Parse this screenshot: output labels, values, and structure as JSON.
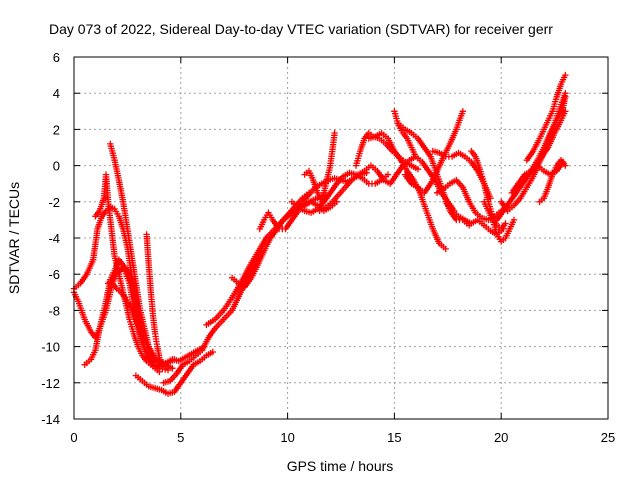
{
  "chart_data": {
    "type": "scatter",
    "title": "Day 073 of 2022, Sidereal Day-to-day VTEC variation (SDTVAR) for receiver gerr",
    "xlabel": "GPS time / hours",
    "ylabel": "SDTVAR / TECUs",
    "xlim": [
      0,
      25
    ],
    "ylim": [
      -14,
      6
    ],
    "xticks": [
      0,
      5,
      10,
      15,
      20,
      25
    ],
    "yticks": [
      -14,
      -12,
      -10,
      -8,
      -6,
      -4,
      -2,
      0,
      2,
      4,
      6
    ],
    "grid": true,
    "marker": "+",
    "color": "#ff0000",
    "series": [
      {
        "x": [
          0.0,
          0.2,
          0.5,
          0.8,
          1.0,
          1.2,
          1.5,
          1.8,
          2.0,
          2.3,
          2.6,
          2.9,
          3.2,
          3.5,
          3.8,
          4.0,
          4.3,
          4.6,
          4.9,
          5.2,
          5.5,
          5.8,
          6.1
        ],
        "y": [
          -7.0,
          -7.5,
          -8.5,
          -9.2,
          -9.5,
          -9.0,
          -8.0,
          -6.5,
          -6.0,
          -5.6,
          -6.5,
          -8.5,
          -9.8,
          -10.6,
          -11.0,
          -11.1,
          -10.9,
          -10.7,
          -10.8,
          -10.6,
          -10.4,
          -10.2,
          -10.0
        ]
      },
      {
        "x": [
          0.5,
          0.8,
          1.0,
          1.2,
          1.5,
          1.7,
          1.9,
          2.1,
          2.3,
          2.5,
          2.7,
          2.9,
          3.1,
          3.3,
          3.5,
          3.7,
          4.0,
          4.3,
          4.6
        ],
        "y": [
          -11.0,
          -10.7,
          -10.2,
          -9.0,
          -7.5,
          -6.3,
          -5.8,
          -5.2,
          -5.5,
          -5.8,
          -6.3,
          -7.3,
          -8.5,
          -9.5,
          -10.3,
          -10.7,
          -10.9,
          -11.0,
          -11.2
        ]
      },
      {
        "x": [
          1.6,
          1.8,
          2.0,
          2.2,
          2.4,
          2.6,
          2.8,
          3.0,
          3.2,
          3.5,
          3.8,
          4.1,
          4.4,
          4.7
        ],
        "y": [
          -6.5,
          -6.5,
          -6.8,
          -7.0,
          -7.3,
          -7.7,
          -8.2,
          -8.8,
          -9.4,
          -10.0,
          -10.6,
          -11.0,
          -10.9,
          -10.7
        ]
      },
      {
        "x": [
          0.0,
          0.3,
          0.6,
          0.9,
          1.1,
          1.3,
          1.5,
          1.7,
          1.9,
          2.1,
          2.3,
          2.5,
          2.7,
          2.9,
          3.1,
          3.4,
          3.7,
          4.0,
          4.4
        ],
        "y": [
          -6.8,
          -6.5,
          -6.0,
          -5.2,
          -3.5,
          -2.8,
          -2.5,
          -2.3,
          -2.4,
          -2.8,
          -3.5,
          -4.5,
          -6.0,
          -7.8,
          -9.3,
          -10.5,
          -11.0,
          -11.2,
          -11.3
        ]
      },
      {
        "x": [
          1.0,
          1.2,
          1.4,
          1.5,
          1.6,
          1.7,
          1.8,
          1.9,
          2.0,
          2.2,
          2.4,
          2.6,
          2.8,
          3.0,
          3.2,
          3.4,
          3.6,
          3.8,
          4.0
        ],
        "y": [
          -2.8,
          -2.5,
          -1.8,
          -0.5,
          -2.0,
          -3.0,
          -4.0,
          -5.0,
          -5.5,
          -6.5,
          -7.5,
          -8.5,
          -9.3,
          -10.0,
          -10.5,
          -10.8,
          -11.0,
          -11.2,
          -11.4
        ]
      },
      {
        "x": [
          1.7,
          1.9,
          2.1,
          2.3,
          2.5,
          2.7,
          2.9,
          3.1,
          3.3,
          3.5,
          3.7
        ],
        "y": [
          1.2,
          0.3,
          -0.8,
          -2.0,
          -3.5,
          -5.0,
          -6.5,
          -8.0,
          -9.0,
          -10.0,
          -10.8
        ]
      },
      {
        "x": [
          3.4,
          3.5,
          3.6,
          3.7,
          3.8,
          3.9,
          4.0,
          4.2,
          4.4,
          4.6
        ],
        "y": [
          -3.8,
          -5.5,
          -7.0,
          -8.3,
          -9.3,
          -10.0,
          -10.6,
          -11.0,
          -11.2,
          -11.2
        ]
      },
      {
        "x": [
          2.9,
          3.2,
          3.5,
          3.8,
          4.1,
          4.4,
          4.7,
          5.0,
          5.3,
          5.6,
          5.9,
          6.2,
          6.5
        ],
        "y": [
          -11.6,
          -11.9,
          -12.2,
          -12.3,
          -12.4,
          -12.6,
          -12.5,
          -12.0,
          -11.5,
          -11.0,
          -10.8,
          -10.5,
          -10.3
        ]
      },
      {
        "x": [
          4.2,
          4.5,
          4.8,
          5.1,
          5.4,
          5.7,
          6.0,
          6.3,
          6.6,
          7.0,
          7.4,
          7.8,
          8.2,
          8.6,
          9.0
        ],
        "y": [
          -12.0,
          -11.9,
          -11.5,
          -11.0,
          -10.8,
          -10.5,
          -10.2,
          -9.5,
          -9.0,
          -8.5,
          -8.0,
          -7.0,
          -6.0,
          -5.0,
          -4.0
        ]
      },
      {
        "x": [
          6.2,
          6.6,
          7.0,
          7.4,
          7.8,
          8.2,
          8.6,
          9.0,
          9.4,
          9.8,
          10.2,
          10.6,
          11.0,
          11.4,
          11.8
        ],
        "y": [
          -8.8,
          -8.5,
          -8.0,
          -7.3,
          -6.5,
          -5.6,
          -4.8,
          -4.0,
          -3.5,
          -3.0,
          -2.6,
          -2.3,
          -2.0,
          -1.8,
          -1.6
        ]
      },
      {
        "x": [
          7.4,
          7.7,
          8.0,
          8.3,
          8.6,
          8.9,
          9.2,
          9.5,
          9.8,
          10.1,
          10.4,
          10.7,
          11.0
        ],
        "y": [
          -6.2,
          -6.5,
          -6.7,
          -6.2,
          -5.5,
          -4.7,
          -4.0,
          -3.5,
          -3.0,
          -2.6,
          -2.2,
          -1.8,
          -1.5
        ]
      },
      {
        "x": [
          8.7,
          8.9,
          9.1,
          9.3,
          9.6,
          9.9,
          10.2,
          10.5,
          10.8,
          11.1,
          11.4,
          11.7,
          12.0,
          12.3
        ],
        "y": [
          -3.5,
          -3.0,
          -2.6,
          -3.0,
          -3.5,
          -3.5,
          -3.0,
          -2.5,
          -2.2,
          -2.0,
          -2.2,
          -2.5,
          -2.3,
          -2.0
        ]
      },
      {
        "x": [
          9.5,
          9.8,
          10.1,
          10.4,
          10.7,
          11.0,
          11.3,
          11.6,
          11.9,
          12.2,
          12.5,
          12.8,
          13.1,
          13.4,
          13.7
        ],
        "y": [
          -3.5,
          -3.0,
          -2.7,
          -2.4,
          -2.0,
          -1.6,
          -1.2,
          -1.0,
          -0.8,
          -0.7,
          -0.8,
          -0.9,
          -0.7,
          -0.5,
          -0.4
        ]
      },
      {
        "x": [
          10.2,
          10.5,
          10.8,
          11.1,
          11.4,
          11.7,
          12.0,
          12.3,
          12.6,
          12.9,
          13.2,
          13.5,
          13.8,
          14.1,
          14.4,
          14.7
        ],
        "y": [
          -2.0,
          -2.3,
          -2.5,
          -2.6,
          -2.4,
          -2.0,
          -1.5,
          -1.0,
          -0.6,
          -0.4,
          -0.5,
          -0.7,
          -1.0,
          -1.0,
          -0.8,
          -0.5
        ]
      },
      {
        "x": [
          10.8,
          11.0,
          11.2,
          11.4,
          11.6,
          11.8,
          12.0,
          12.2
        ],
        "y": [
          -0.5,
          -0.3,
          -0.8,
          -1.5,
          -2.0,
          -1.0,
          0.0,
          1.8
        ]
      },
      {
        "x": [
          11.5,
          11.8,
          12.1,
          12.4,
          12.7,
          13.0,
          13.3,
          13.6,
          13.9,
          14.2,
          14.5,
          14.8,
          15.1,
          15.4,
          15.7,
          16.0
        ],
        "y": [
          -2.5,
          -2.3,
          -2.0,
          -1.6,
          -1.2,
          -0.8,
          -0.5,
          -0.3,
          0.0,
          -0.3,
          -0.8,
          -1.0,
          -0.5,
          0.0,
          0.3,
          0.5
        ]
      },
      {
        "x": [
          13.2,
          13.4,
          13.6,
          13.8,
          14.0,
          14.3,
          14.6,
          14.9,
          15.2,
          15.5,
          15.8,
          16.1
        ],
        "y": [
          0.0,
          0.8,
          1.5,
          1.8,
          1.6,
          1.5,
          1.2,
          0.8,
          0.5,
          0.2,
          0.0,
          -0.2
        ]
      },
      {
        "x": [
          13.8,
          14.1,
          14.4,
          14.7,
          15.0,
          15.3,
          15.6,
          15.9,
          16.2,
          16.5,
          16.8,
          17.1,
          17.4
        ],
        "y": [
          1.5,
          1.6,
          1.8,
          1.5,
          0.8,
          0.3,
          -0.3,
          -0.8,
          -1.5,
          -2.5,
          -3.5,
          -4.3,
          -4.6
        ]
      },
      {
        "x": [
          15.0,
          15.2,
          15.4,
          15.6,
          15.8,
          16.0,
          16.3,
          16.6,
          16.9,
          17.2,
          17.5,
          17.8
        ],
        "y": [
          3.0,
          2.2,
          1.8,
          1.5,
          1.0,
          0.5,
          0.2,
          -0.3,
          -0.8,
          -1.5,
          -2.0,
          -2.5
        ]
      },
      {
        "x": [
          15.2,
          15.5,
          15.8,
          16.1,
          16.4,
          16.7,
          17.0,
          17.3,
          17.6,
          17.9,
          18.2,
          18.5
        ],
        "y": [
          2.3,
          2.0,
          1.8,
          1.5,
          1.0,
          0.5,
          -0.5,
          -1.5,
          -2.5,
          -3.0,
          -3.0,
          -3.3
        ]
      },
      {
        "x": [
          15.5,
          15.8,
          16.1,
          16.4,
          16.7,
          17.0,
          17.3,
          17.6,
          17.9,
          18.2
        ],
        "y": [
          -0.5,
          -1.0,
          -1.2,
          -1.5,
          -1.0,
          -0.3,
          0.5,
          1.2,
          2.0,
          3.0
        ]
      },
      {
        "x": [
          16.8,
          17.1,
          17.4,
          17.7,
          18.0,
          18.3,
          18.6,
          18.9,
          19.2,
          19.5
        ],
        "y": [
          0.8,
          0.7,
          0.5,
          0.5,
          0.7,
          0.5,
          0.2,
          -0.3,
          -1.0,
          -1.8
        ]
      },
      {
        "x": [
          17.0,
          17.3,
          17.6,
          17.9,
          18.2,
          18.5,
          18.8,
          19.1,
          19.4,
          19.7,
          20.0,
          20.3
        ],
        "y": [
          -1.5,
          -1.3,
          -1.0,
          -0.8,
          -1.2,
          -2.0,
          -2.6,
          -2.9,
          -3.0,
          -2.8,
          -2.5,
          -2.3
        ]
      },
      {
        "x": [
          17.4,
          17.7,
          18.0,
          18.3,
          18.6,
          18.9,
          19.2,
          19.5,
          19.8,
          20.1
        ],
        "y": [
          -2.0,
          -2.5,
          -2.8,
          -3.0,
          -3.2,
          -3.0,
          -3.3,
          -3.6,
          -3.8,
          -3.5
        ]
      },
      {
        "x": [
          18.6,
          18.8,
          19.0,
          19.2,
          19.4,
          19.6,
          19.8,
          20.0,
          20.2
        ],
        "y": [
          0.8,
          0.5,
          -0.2,
          -1.0,
          -2.0,
          -2.8,
          -3.3,
          -3.5,
          -3.2
        ]
      },
      {
        "x": [
          19.2,
          19.4,
          19.6,
          19.8,
          20.0,
          20.2,
          20.4,
          20.6
        ],
        "y": [
          -2.0,
          -2.5,
          -3.0,
          -3.8,
          -4.2,
          -4.0,
          -3.5,
          -3.0
        ]
      },
      {
        "x": [
          19.8,
          20.1,
          20.4,
          20.7,
          21.0,
          21.3,
          21.6,
          21.9,
          22.2,
          22.5,
          22.8,
          23.0
        ],
        "y": [
          -3.0,
          -2.5,
          -2.0,
          -1.5,
          -1.0,
          -0.5,
          0.0,
          0.5,
          1.0,
          1.8,
          2.5,
          3.0
        ]
      },
      {
        "x": [
          20.0,
          20.3,
          20.6,
          20.9,
          21.2,
          21.5,
          21.8,
          22.1,
          22.4,
          22.7,
          23.0
        ],
        "y": [
          -2.0,
          -2.5,
          -2.2,
          -1.8,
          -1.2,
          -0.6,
          0.2,
          1.0,
          2.0,
          3.0,
          4.0
        ]
      },
      {
        "x": [
          20.5,
          20.8,
          21.1,
          21.4,
          21.7,
          22.0,
          22.3,
          22.6,
          22.9,
          23.0
        ],
        "y": [
          -1.5,
          -1.0,
          -0.8,
          -0.3,
          0.3,
          1.0,
          1.8,
          2.5,
          3.2,
          3.8
        ]
      },
      {
        "x": [
          21.2,
          21.5,
          21.8,
          22.0,
          22.2,
          22.4,
          22.6,
          22.8,
          23.0
        ],
        "y": [
          0.3,
          0.8,
          1.5,
          2.0,
          2.5,
          3.0,
          3.8,
          4.5,
          5.0
        ]
      },
      {
        "x": [
          21.8,
          22.0,
          22.2,
          22.4,
          22.6,
          22.8,
          23.0
        ],
        "y": [
          -2.0,
          -1.8,
          -1.2,
          -0.5,
          0.0,
          0.3,
          0.0
        ]
      },
      {
        "x": [
          20.8,
          21.1,
          21.4,
          21.7,
          22.0,
          22.3,
          22.6,
          22.9
        ],
        "y": [
          -1.0,
          -0.5,
          -0.3,
          0.0,
          -0.3,
          -0.5,
          -0.3,
          0.2
        ]
      }
    ]
  }
}
